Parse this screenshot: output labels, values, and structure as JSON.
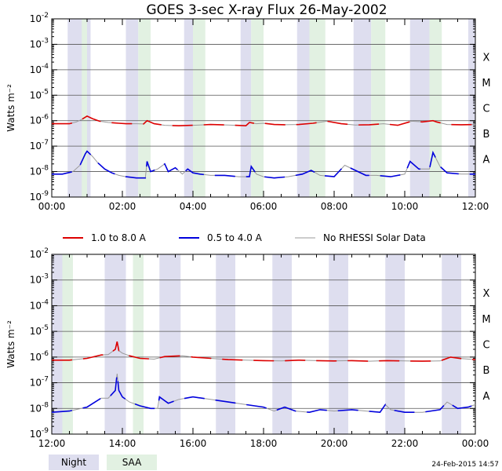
{
  "title": "GOES 3-sec X-ray Flux   26-May-2002",
  "ylabel": "Watts m⁻²",
  "ytick_exponents": [
    "-9",
    "-8",
    "-7",
    "-6",
    "-5",
    "-4",
    "-3",
    "-2"
  ],
  "class_labels": [
    "A",
    "B",
    "C",
    "M",
    "X"
  ],
  "legend": {
    "items": [
      {
        "label": "1.0 to 8.0 A",
        "color": "#dd0000"
      },
      {
        "label": "0.5 to 4.0 A",
        "color": "#0000dd"
      },
      {
        "label": "No RHESSI Solar Data",
        "color": "#999999"
      }
    ]
  },
  "shade_legend": {
    "night": "Night",
    "saa": "SAA"
  },
  "footer_timestamp": "24-Feb-2015 14:57",
  "colors": {
    "night": "#dedeef",
    "saa": "#e2f1e2",
    "long": "#dd0000",
    "short": "#0000dd",
    "gray": "#999999"
  },
  "chart_data": [
    {
      "type": "line",
      "ylim_log10": [
        -9,
        -2
      ],
      "xlim_hours": [
        0,
        12
      ],
      "x_tick_labels": [
        "00:00",
        "02:00",
        "04:00",
        "06:00",
        "08:00",
        "10:00",
        "12:00"
      ],
      "night_hours": [
        [
          0.45,
          1.1
        ],
        [
          2.1,
          2.45
        ],
        [
          3.75,
          4.0
        ],
        [
          5.35,
          5.65
        ],
        [
          6.95,
          7.3
        ],
        [
          8.55,
          9.05
        ],
        [
          10.15,
          10.7
        ],
        [
          11.8,
          12.0
        ]
      ],
      "saa_hours": [
        [
          0.85,
          1.0
        ],
        [
          2.45,
          2.8
        ],
        [
          4.0,
          4.35
        ],
        [
          5.65,
          6.0
        ],
        [
          7.3,
          7.75
        ],
        [
          9.05,
          9.45
        ],
        [
          10.7,
          11.05
        ]
      ],
      "series": [
        {
          "name": "1.0 to 8.0 A",
          "x_hours": [
            0.0,
            0.5,
            0.7,
            0.85,
            1.0,
            1.15,
            1.35,
            1.6,
            1.9,
            2.1,
            2.4,
            2.6,
            2.7,
            2.9,
            3.2,
            3.6,
            4.0,
            4.5,
            5.0,
            5.5,
            5.6,
            5.8,
            6.0,
            6.3,
            6.6,
            7.0,
            7.4,
            7.8,
            8.2,
            8.6,
            9.0,
            9.4,
            9.8,
            10.2,
            10.5,
            10.8,
            10.9,
            11.2,
            11.6,
            12.0
          ],
          "log10_values": [
            -6.12,
            -6.12,
            -6.05,
            -5.95,
            -5.82,
            -5.92,
            -6.02,
            -6.07,
            -6.1,
            -6.12,
            -6.12,
            -6.13,
            -6.0,
            -6.12,
            -6.18,
            -6.2,
            -6.18,
            -6.15,
            -6.17,
            -6.2,
            -6.07,
            -6.12,
            -6.1,
            -6.15,
            -6.16,
            -6.15,
            -6.1,
            -6.02,
            -6.12,
            -6.17,
            -6.16,
            -6.12,
            -6.18,
            -6.02,
            -6.05,
            -6.0,
            -6.05,
            -6.15,
            -6.16,
            -6.15
          ]
        },
        {
          "name": "0.5 to 4.0 A",
          "x_hours": [
            0.0,
            0.3,
            0.6,
            0.8,
            0.95,
            1.0,
            1.15,
            1.3,
            1.5,
            1.7,
            1.9,
            2.1,
            2.4,
            2.65,
            2.7,
            2.8,
            3.0,
            3.2,
            3.3,
            3.5,
            3.7,
            3.85,
            4.0,
            4.2,
            4.5,
            4.9,
            5.3,
            5.6,
            5.65,
            5.8,
            6.0,
            6.3,
            6.7,
            7.1,
            7.35,
            7.6,
            8.0,
            8.3,
            8.6,
            8.9,
            9.2,
            9.6,
            10.0,
            10.15,
            10.4,
            10.7,
            10.8,
            11.0,
            11.2,
            11.6,
            12.0
          ],
          "log10_values": [
            -8.1,
            -8.1,
            -8.0,
            -7.75,
            -7.3,
            -7.2,
            -7.4,
            -7.65,
            -7.9,
            -8.05,
            -8.15,
            -8.2,
            -8.25,
            -8.25,
            -7.6,
            -8.0,
            -7.9,
            -7.7,
            -8.0,
            -7.85,
            -8.1,
            -7.9,
            -8.05,
            -8.1,
            -8.15,
            -8.15,
            -8.2,
            -8.2,
            -7.8,
            -8.1,
            -8.2,
            -8.25,
            -8.2,
            -8.1,
            -7.95,
            -8.15,
            -8.2,
            -7.75,
            -7.95,
            -8.15,
            -8.15,
            -8.2,
            -8.1,
            -7.6,
            -7.9,
            -7.9,
            -7.25,
            -7.8,
            -8.05,
            -8.1,
            -8.1
          ]
        }
      ]
    },
    {
      "type": "line",
      "ylim_log10": [
        -9,
        -2
      ],
      "xlim_hours": [
        12,
        24
      ],
      "x_tick_labels": [
        "12:00",
        "14:00",
        "16:00",
        "18:00",
        "20:00",
        "22:00",
        "00:00"
      ],
      "night_hours": [
        [
          12.0,
          12.3
        ],
        [
          13.5,
          14.1
        ],
        [
          15.05,
          15.65
        ],
        [
          16.65,
          17.2
        ],
        [
          18.25,
          18.8
        ],
        [
          19.85,
          20.4
        ],
        [
          21.45,
          22.0
        ],
        [
          23.05,
          23.6
        ]
      ],
      "saa_hours": [
        [
          12.3,
          12.6
        ],
        [
          14.3,
          14.6
        ]
      ],
      "series": [
        {
          "name": "1.0 to 8.0 A",
          "x_hours": [
            12.0,
            12.5,
            13.0,
            13.4,
            13.6,
            13.8,
            13.85,
            13.9,
            14.0,
            14.2,
            14.5,
            14.9,
            15.2,
            15.7,
            16.0,
            16.5,
            17.0,
            17.5,
            18.0,
            18.5,
            19.0,
            19.5,
            20.0,
            20.5,
            21.0,
            21.5,
            22.0,
            22.5,
            23.0,
            23.3,
            23.6,
            24.0
          ],
          "log10_values": [
            -6.12,
            -6.12,
            -6.05,
            -5.92,
            -5.9,
            -5.7,
            -5.4,
            -5.75,
            -5.85,
            -5.95,
            -6.05,
            -6.08,
            -5.98,
            -5.95,
            -6.0,
            -6.05,
            -6.1,
            -6.12,
            -6.14,
            -6.15,
            -6.12,
            -6.14,
            -6.15,
            -6.14,
            -6.16,
            -6.14,
            -6.15,
            -6.16,
            -6.15,
            -6.0,
            -6.06,
            -6.1
          ]
        },
        {
          "name": "0.5 to 4.0 A",
          "x_hours": [
            12.0,
            12.5,
            13.0,
            13.4,
            13.6,
            13.8,
            13.85,
            13.9,
            14.0,
            14.2,
            14.5,
            14.8,
            15.0,
            15.05,
            15.3,
            15.6,
            16.0,
            16.5,
            17.0,
            17.5,
            18.0,
            18.3,
            18.6,
            18.9,
            19.3,
            19.6,
            20.0,
            20.5,
            20.9,
            21.3,
            21.45,
            21.6,
            22.0,
            22.5,
            23.0,
            23.2,
            23.5,
            23.8,
            24.0
          ],
          "log10_values": [
            -8.15,
            -8.1,
            -7.95,
            -7.6,
            -7.6,
            -7.3,
            -6.65,
            -7.3,
            -7.55,
            -7.75,
            -7.9,
            -8.0,
            -8.0,
            -7.55,
            -7.8,
            -7.65,
            -7.55,
            -7.65,
            -7.75,
            -7.85,
            -7.95,
            -8.1,
            -7.95,
            -8.1,
            -8.15,
            -8.05,
            -8.1,
            -8.05,
            -8.1,
            -8.15,
            -7.85,
            -8.05,
            -8.15,
            -8.15,
            -8.05,
            -7.75,
            -8.0,
            -7.95,
            -7.85
          ]
        }
      ]
    }
  ]
}
